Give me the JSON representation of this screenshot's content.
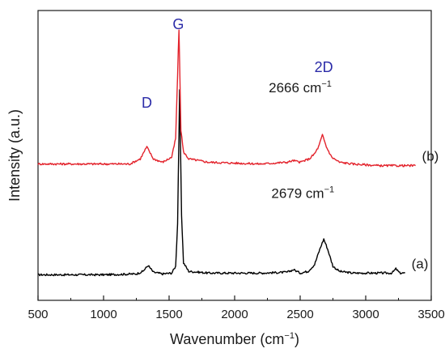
{
  "chart_data": {
    "type": "line",
    "xlabel": "Wavenumber (cm",
    "xlabel_sup": "−1",
    "xlabel_end": ")",
    "ylabel": "Intensity (a.u.)",
    "xlim": [
      500,
      3500
    ],
    "ylim": [
      0,
      1.7
    ],
    "x_ticks": [
      500,
      1000,
      1500,
      2000,
      2500,
      3000,
      3500
    ],
    "y_ticks_shown": false,
    "grid": false,
    "colors": {
      "a": "#000000",
      "b": "#e3232c",
      "peak_labels": "#2b2ba8"
    },
    "peak_labels": [
      {
        "text": "D",
        "x": 1330,
        "y": 1.13
      },
      {
        "text": "G",
        "x": 1570,
        "y": 1.59
      },
      {
        "text": "2D",
        "x": 2680,
        "y": 1.34
      }
    ],
    "annotations": [
      {
        "text": "2666 cm",
        "sup": "−1",
        "x": 2500,
        "y": 1.22
      },
      {
        "text": "2679 cm",
        "sup": "−1",
        "x": 2520,
        "y": 0.6
      }
    ],
    "series": [
      {
        "name": "(a)",
        "color": "#000000",
        "x": [
          500,
          1000,
          1250,
          1300,
          1340,
          1380,
          1450,
          1520,
          1550,
          1565,
          1580,
          1595,
          1610,
          1650,
          1800,
          2200,
          2400,
          2450,
          2500,
          2560,
          2610,
          2650,
          2680,
          2710,
          2750,
          2800,
          2900,
          3200,
          3230,
          3260,
          3300
        ],
        "y": [
          0.15,
          0.15,
          0.155,
          0.17,
          0.205,
          0.165,
          0.155,
          0.16,
          0.2,
          0.45,
          1.23,
          0.5,
          0.22,
          0.17,
          0.16,
          0.16,
          0.165,
          0.18,
          0.16,
          0.17,
          0.21,
          0.3,
          0.36,
          0.3,
          0.2,
          0.17,
          0.16,
          0.16,
          0.185,
          0.16,
          0.16
        ]
      },
      {
        "name": "(b)",
        "color": "#e3232c",
        "x": [
          500,
          900,
          1200,
          1280,
          1330,
          1380,
          1450,
          1520,
          1550,
          1565,
          1575,
          1590,
          1610,
          1650,
          1800,
          2200,
          2400,
          2450,
          2500,
          2570,
          2610,
          2640,
          2670,
          2700,
          2740,
          2800,
          2900,
          3100,
          3380
        ],
        "y": [
          0.8,
          0.8,
          0.8,
          0.83,
          0.9,
          0.83,
          0.81,
          0.84,
          0.95,
          1.32,
          1.59,
          1.0,
          0.87,
          0.83,
          0.81,
          0.8,
          0.81,
          0.82,
          0.81,
          0.83,
          0.86,
          0.9,
          0.97,
          0.9,
          0.84,
          0.81,
          0.8,
          0.79,
          0.79
        ]
      }
    ]
  }
}
